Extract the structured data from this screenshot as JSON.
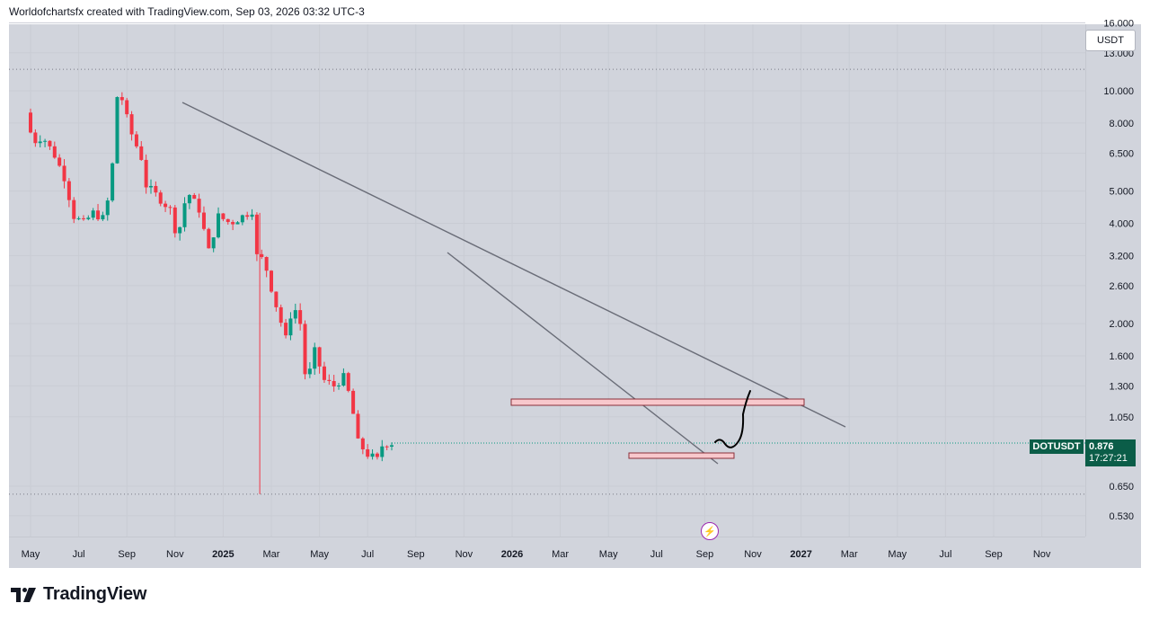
{
  "header": {
    "attribution": "Worldofchartsfx created with TradingView.com, Sep 03, 2026 03:32 UTC-3"
  },
  "currency": {
    "label": "USDT"
  },
  "symbol_tag": {
    "symbol": "DOTUSDT",
    "price": "0.876",
    "countdown": "17:27:21"
  },
  "brand": {
    "name": "TradingView"
  },
  "events_icon": {
    "name": "lightning-icon",
    "glyph": "⚡"
  },
  "colors": {
    "up": "#089981",
    "down": "#f23645",
    "background": "#d1d4dc",
    "trendline": "#6a6d78",
    "drawing": "#000000",
    "tag": "#0b5d48"
  },
  "chart_data": {
    "type": "candlestick",
    "symbol": "DOTUSDT",
    "currency": "USDT",
    "scale": "log",
    "price_axis_labels": [
      "16.000",
      "13.000",
      "10.000",
      "8.000",
      "6.500",
      "5.000",
      "4.000",
      "3.200",
      "2.600",
      "2.000",
      "1.600",
      "1.300",
      "1.050",
      "0.650",
      "0.530"
    ],
    "time_axis_labels": [
      {
        "label": "May",
        "bold": false
      },
      {
        "label": "Jul",
        "bold": false
      },
      {
        "label": "Sep",
        "bold": false
      },
      {
        "label": "Nov",
        "bold": false
      },
      {
        "label": "2025",
        "bold": true
      },
      {
        "label": "Mar",
        "bold": false
      },
      {
        "label": "May",
        "bold": false
      },
      {
        "label": "Jul",
        "bold": false
      },
      {
        "label": "Sep",
        "bold": false
      },
      {
        "label": "Nov",
        "bold": false
      },
      {
        "label": "2026",
        "bold": true
      },
      {
        "label": "Mar",
        "bold": false
      },
      {
        "label": "May",
        "bold": false
      },
      {
        "label": "Jul",
        "bold": false
      },
      {
        "label": "Sep",
        "bold": false
      },
      {
        "label": "Nov",
        "bold": false
      },
      {
        "label": "2027",
        "bold": true
      },
      {
        "label": "Mar",
        "bold": false
      },
      {
        "label": "May",
        "bold": false
      },
      {
        "label": "Jul",
        "bold": false
      },
      {
        "label": "Sep",
        "bold": false
      },
      {
        "label": "Nov",
        "bold": false
      }
    ],
    "price_path": [
      [
        0.0,
        8.6
      ],
      [
        0.3,
        7.0
      ],
      [
        0.7,
        7.3
      ],
      [
        1.2,
        6.4
      ],
      [
        1.6,
        5.5
      ],
      [
        2.0,
        4.2
      ],
      [
        2.4,
        4.0
      ],
      [
        2.8,
        4.3
      ],
      [
        3.3,
        4.1
      ],
      [
        3.6,
        6.0
      ],
      [
        3.85,
        10.8
      ],
      [
        4.05,
        9.0
      ],
      [
        4.4,
        7.4
      ],
      [
        4.8,
        6.3
      ],
      [
        5.0,
        5.2
      ],
      [
        5.5,
        4.8
      ],
      [
        6.0,
        4.4
      ],
      [
        6.3,
        3.6
      ],
      [
        6.7,
        5.0
      ],
      [
        7.2,
        4.4
      ],
      [
        7.6,
        3.3
      ],
      [
        8.0,
        4.2
      ],
      [
        8.5,
        4.0
      ],
      [
        9.0,
        4.2
      ],
      [
        9.45,
        4.4
      ],
      [
        9.55,
        3.2
      ],
      [
        9.9,
        3.1
      ],
      [
        10.3,
        2.4
      ],
      [
        10.8,
        1.8
      ],
      [
        11.1,
        2.3
      ],
      [
        11.4,
        2.0
      ],
      [
        11.65,
        1.3
      ],
      [
        12.0,
        1.65
      ],
      [
        12.4,
        1.35
      ],
      [
        12.8,
        1.3
      ],
      [
        13.2,
        1.38
      ],
      [
        13.5,
        1.18
      ],
      [
        13.8,
        0.88
      ],
      [
        14.2,
        0.81
      ],
      [
        14.6,
        0.78
      ],
      [
        14.8,
        0.86
      ],
      [
        15.0,
        0.876
      ]
    ],
    "current_price": 0.876,
    "range_low": 0.615,
    "range_high": 11.6
  }
}
